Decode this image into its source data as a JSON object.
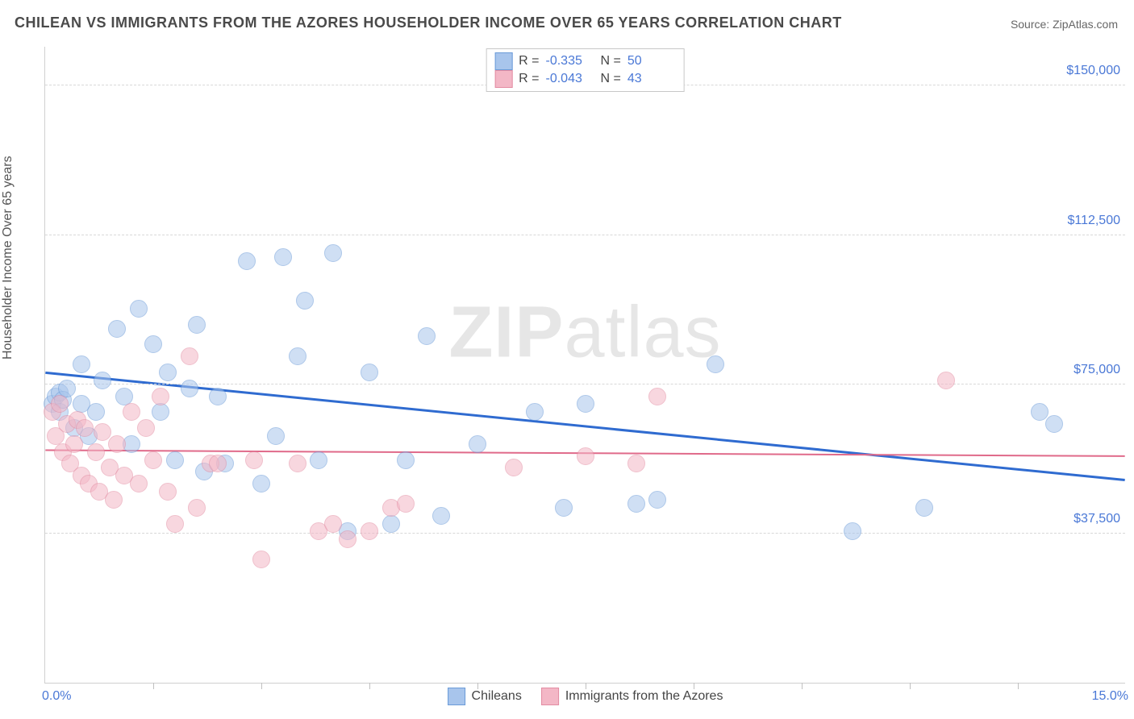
{
  "title": "CHILEAN VS IMMIGRANTS FROM THE AZORES HOUSEHOLDER INCOME OVER 65 YEARS CORRELATION CHART",
  "source": "Source: ZipAtlas.com",
  "watermark_bold": "ZIP",
  "watermark_rest": "atlas",
  "yaxis_title": "Householder Income Over 65 years",
  "chart": {
    "type": "scatter",
    "background_color": "#ffffff",
    "grid_color": "#d8d8d8",
    "border_color": "#d0d0d0",
    "xlim": [
      0,
      15
    ],
    "ylim": [
      0,
      160000
    ],
    "x_ticks_minor_step": 1.5,
    "y_gridlines": [
      37500,
      75000,
      112500,
      150000
    ],
    "y_tick_labels": [
      "$37,500",
      "$75,000",
      "$112,500",
      "$150,000"
    ],
    "x_tick_labels": {
      "min": "0.0%",
      "max": "15.0%"
    },
    "label_color": "#4a78d6",
    "label_fontsize": 16,
    "point_radius": 11,
    "point_opacity": 0.55,
    "series": [
      {
        "name": "Chileans",
        "fill": "#a8c5ec",
        "stroke": "#6b9bd8",
        "trend_color": "#2f6bd0",
        "trend_width": 3,
        "R": "-0.335",
        "N": "50",
        "trend": {
          "y_at_x0": 78000,
          "y_at_x15": 51000
        },
        "points": [
          [
            0.1,
            70000
          ],
          [
            0.15,
            72000
          ],
          [
            0.2,
            68000
          ],
          [
            0.2,
            73000
          ],
          [
            0.25,
            71000
          ],
          [
            0.3,
            74000
          ],
          [
            0.4,
            64000
          ],
          [
            0.5,
            70000
          ],
          [
            0.5,
            80000
          ],
          [
            0.6,
            62000
          ],
          [
            0.7,
            68000
          ],
          [
            0.8,
            76000
          ],
          [
            1.0,
            89000
          ],
          [
            1.1,
            72000
          ],
          [
            1.2,
            60000
          ],
          [
            1.3,
            94000
          ],
          [
            1.5,
            85000
          ],
          [
            1.6,
            68000
          ],
          [
            1.7,
            78000
          ],
          [
            1.8,
            56000
          ],
          [
            2.0,
            74000
          ],
          [
            2.1,
            90000
          ],
          [
            2.2,
            53000
          ],
          [
            2.4,
            72000
          ],
          [
            2.5,
            55000
          ],
          [
            2.8,
            106000
          ],
          [
            3.0,
            50000
          ],
          [
            3.2,
            62000
          ],
          [
            3.3,
            107000
          ],
          [
            3.5,
            82000
          ],
          [
            3.6,
            96000
          ],
          [
            3.8,
            56000
          ],
          [
            4.0,
            108000
          ],
          [
            4.2,
            38000
          ],
          [
            4.5,
            78000
          ],
          [
            4.8,
            40000
          ],
          [
            5.0,
            56000
          ],
          [
            5.3,
            87000
          ],
          [
            5.5,
            42000
          ],
          [
            6.0,
            60000
          ],
          [
            6.8,
            68000
          ],
          [
            7.2,
            44000
          ],
          [
            7.5,
            70000
          ],
          [
            8.2,
            45000
          ],
          [
            8.5,
            46000
          ],
          [
            9.3,
            80000
          ],
          [
            11.2,
            38000
          ],
          [
            12.2,
            44000
          ],
          [
            13.8,
            68000
          ],
          [
            14.0,
            65000
          ]
        ]
      },
      {
        "name": "Immigrants from the Azores",
        "fill": "#f3b7c6",
        "stroke": "#e38ca2",
        "trend_color": "#e06a8a",
        "trend_width": 2,
        "R": "-0.043",
        "N": "43",
        "trend": {
          "y_at_x0": 58500,
          "y_at_x15": 57000
        },
        "points": [
          [
            0.1,
            68000
          ],
          [
            0.15,
            62000
          ],
          [
            0.2,
            70000
          ],
          [
            0.25,
            58000
          ],
          [
            0.3,
            65000
          ],
          [
            0.35,
            55000
          ],
          [
            0.4,
            60000
          ],
          [
            0.45,
            66000
          ],
          [
            0.5,
            52000
          ],
          [
            0.55,
            64000
          ],
          [
            0.6,
            50000
          ],
          [
            0.7,
            58000
          ],
          [
            0.75,
            48000
          ],
          [
            0.8,
            63000
          ],
          [
            0.9,
            54000
          ],
          [
            0.95,
            46000
          ],
          [
            1.0,
            60000
          ],
          [
            1.1,
            52000
          ],
          [
            1.2,
            68000
          ],
          [
            1.3,
            50000
          ],
          [
            1.4,
            64000
          ],
          [
            1.5,
            56000
          ],
          [
            1.6,
            72000
          ],
          [
            1.7,
            48000
          ],
          [
            1.8,
            40000
          ],
          [
            2.0,
            82000
          ],
          [
            2.1,
            44000
          ],
          [
            2.3,
            55000
          ],
          [
            2.4,
            55000
          ],
          [
            2.9,
            56000
          ],
          [
            3.0,
            31000
          ],
          [
            3.5,
            55000
          ],
          [
            3.8,
            38000
          ],
          [
            4.0,
            40000
          ],
          [
            4.2,
            36000
          ],
          [
            4.5,
            38000
          ],
          [
            4.8,
            44000
          ],
          [
            5.0,
            45000
          ],
          [
            6.5,
            54000
          ],
          [
            7.5,
            57000
          ],
          [
            8.5,
            72000
          ],
          [
            8.2,
            55000
          ],
          [
            12.5,
            76000
          ]
        ]
      }
    ]
  },
  "legend_top_labels": {
    "R": "R =",
    "N": "N ="
  },
  "legend_bottom": [
    "Chileans",
    "Immigrants from the Azores"
  ]
}
